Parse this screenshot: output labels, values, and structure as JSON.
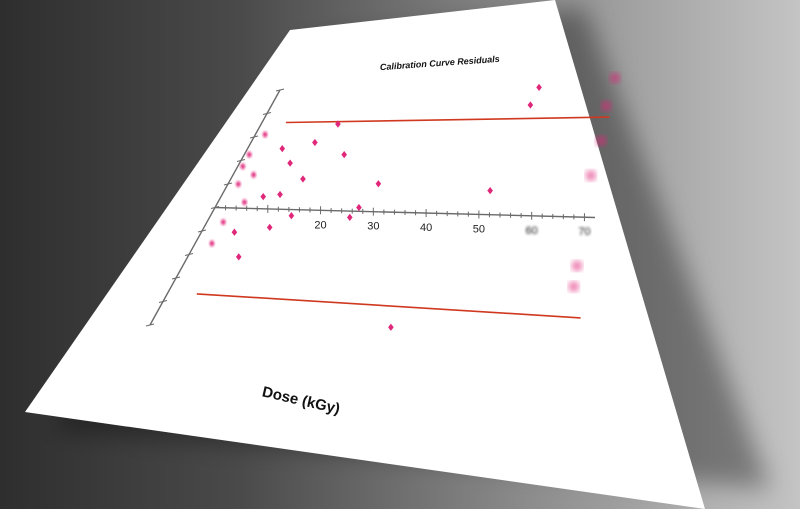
{
  "chart_data": {
    "type": "scatter",
    "title": "Calibration Curve Residuals",
    "xlabel": "Dose (kGy)",
    "ylabel": "",
    "x_ticks": [
      20,
      30,
      40,
      50,
      60,
      70
    ],
    "xlim": [
      0,
      72
    ],
    "ylim": [
      -100,
      100
    ],
    "points": [
      {
        "x": 1,
        "y": 45
      },
      {
        "x": 1,
        "y": 35
      },
      {
        "x": 2,
        "y": 62
      },
      {
        "x": 2,
        "y": 20
      },
      {
        "x": 3,
        "y": -12
      },
      {
        "x": 3,
        "y": -30
      },
      {
        "x": 4,
        "y": 28
      },
      {
        "x": 5,
        "y": 5
      },
      {
        "x": 6,
        "y": -20
      },
      {
        "x": 7,
        "y": 50
      },
      {
        "x": 8,
        "y": 10
      },
      {
        "x": 9,
        "y": -40
      },
      {
        "x": 10,
        "y": 38
      },
      {
        "x": 11,
        "y": 12
      },
      {
        "x": 12,
        "y": -15
      },
      {
        "x": 13,
        "y": 55
      },
      {
        "x": 14,
        "y": 25
      },
      {
        "x": 15,
        "y": -5
      },
      {
        "x": 16,
        "y": 70
      },
      {
        "x": 20,
        "y": 45
      },
      {
        "x": 26,
        "y": -5
      },
      {
        "x": 27,
        "y": 3
      },
      {
        "x": 29,
        "y": 22
      },
      {
        "x": 40,
        "y": -88
      },
      {
        "x": 51,
        "y": 18
      },
      {
        "x": 55,
        "y": 82
      },
      {
        "x": 56,
        "y": 95
      },
      {
        "x": 70,
        "y": -50
      },
      {
        "x": 70,
        "y": -35
      },
      {
        "x": 70,
        "y": 30
      },
      {
        "x": 71,
        "y": 55
      },
      {
        "x": 71,
        "y": 80
      },
      {
        "x": 72,
        "y": 100
      }
    ],
    "upper_bound": {
      "x": [
        5,
        72
      ],
      "y": [
        72,
        72
      ]
    },
    "lower_bound": {
      "x": [
        5,
        72
      ],
      "y": [
        -72,
        -72
      ]
    },
    "colors": {
      "points": "#e0287a",
      "bounds": "#d0391f"
    }
  }
}
